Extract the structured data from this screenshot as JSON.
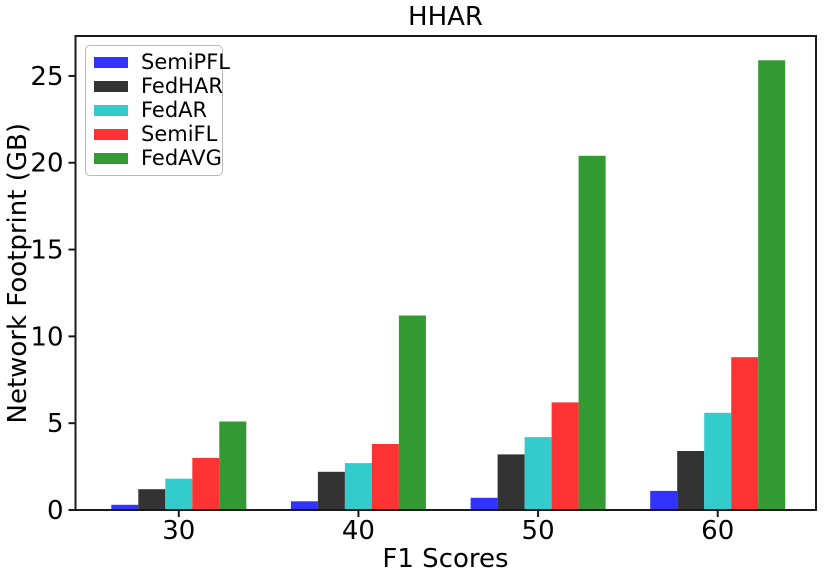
{
  "chart_data": {
    "type": "bar",
    "title": "HHAR",
    "xlabel": "F1 Scores",
    "ylabel": "Network Footprint (GB)",
    "categories": [
      "30",
      "40",
      "50",
      "60"
    ],
    "series": [
      {
        "name": "SemiPFL",
        "color": "#3333ff",
        "values": [
          0.3,
          0.5,
          0.7,
          1.1
        ]
      },
      {
        "name": "FedHAR",
        "color": "#333333",
        "values": [
          1.2,
          2.2,
          3.2,
          3.4
        ]
      },
      {
        "name": "FedAR",
        "color": "#33cccc",
        "values": [
          1.8,
          2.7,
          4.2,
          5.6
        ]
      },
      {
        "name": "SemiFL",
        "color": "#ff3333",
        "values": [
          3.0,
          3.8,
          6.2,
          8.8
        ]
      },
      {
        "name": "FedAVG",
        "color": "#339933",
        "values": [
          5.1,
          11.2,
          20.4,
          25.9
        ]
      }
    ],
    "yticks": [
      0,
      5,
      10,
      15,
      20,
      25
    ],
    "ylim": [
      0,
      27.3
    ],
    "grid": false,
    "legend_position": "upper-left",
    "axis_color": "#1a1a1a"
  }
}
